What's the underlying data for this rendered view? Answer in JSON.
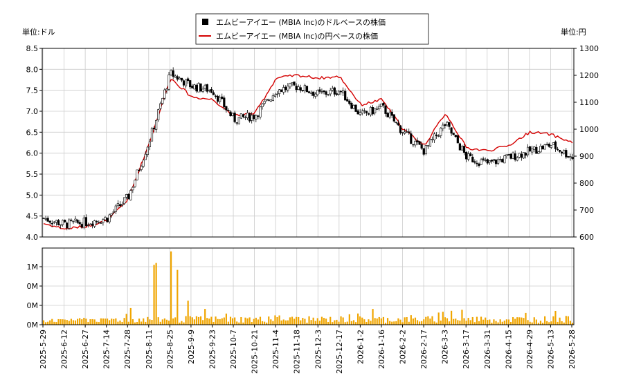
{
  "chart_data": [
    {
      "type": "candlestick",
      "legend": [
        {
          "label": "エムビーアイエー (MBIA Inc)のドルベースの株価",
          "color": "#000000",
          "marker": "square"
        },
        {
          "label": "エムビーアイエー (MBIA Inc)の円ベースの株価",
          "color": "#d40000",
          "marker": "line"
        }
      ],
      "left_unit_label": "単位:ドル",
      "right_unit_label": "単位:円",
      "ylim_left": [
        4.0,
        8.5
      ],
      "ylim_right": [
        600,
        1300
      ],
      "yticks_left": [
        "4.0",
        "4.5",
        "5.0",
        "5.5",
        "6.0",
        "6.5",
        "7.0",
        "7.5",
        "8.0",
        "8.5"
      ],
      "yticks_right": [
        "600",
        "700",
        "800",
        "900",
        "1000",
        "1100",
        "1200",
        "1300"
      ],
      "grid": true,
      "x_dates": [
        "2025-5-29",
        "2025-6-12",
        "2025-6-27",
        "2025-7-14",
        "2025-7-28",
        "2025-8-11",
        "2025-8-25",
        "2025-9-9",
        "2025-9-23",
        "2025-10-7",
        "2025-10-21",
        "2025-11-4",
        "2025-11-18",
        "2025-12-3",
        "2025-12-17",
        "2026-1-2",
        "2026-1-16",
        "2026-2-2",
        "2026-2-17",
        "2026-3-3",
        "2026-3-17",
        "2026-3-31",
        "2026-4-15",
        "2026-4-29",
        "2026-5-13",
        "2026-5-28"
      ],
      "usd_close_by_tick": [
        4.45,
        4.3,
        4.35,
        4.45,
        4.95,
        6.3,
        7.9,
        7.6,
        7.5,
        6.8,
        6.9,
        7.5,
        7.6,
        7.4,
        7.5,
        6.9,
        7.1,
        6.5,
        6.05,
        6.7,
        5.9,
        5.75,
        5.9,
        6.05,
        6.2,
        5.9
      ],
      "jpy_close_by_tick": [
        650,
        630,
        640,
        660,
        740,
        950,
        1190,
        1120,
        1110,
        1050,
        1060,
        1190,
        1200,
        1190,
        1195,
        1090,
        1110,
        1000,
        940,
        1060,
        930,
        920,
        940,
        990,
        980,
        950
      ]
    },
    {
      "type": "bar",
      "yticks": [
        "0M",
        "0M",
        "0M",
        "1M"
      ],
      "x_dates": [
        "2025-5-29",
        "2025-6-12",
        "2025-6-27",
        "2025-7-14",
        "2025-7-28",
        "2025-8-11",
        "2025-8-25",
        "2025-9-9",
        "2025-9-23",
        "2025-10-7",
        "2025-10-21",
        "2025-11-4",
        "2025-11-18",
        "2025-12-3",
        "2025-12-17",
        "2026-1-2",
        "2026-1-16",
        "2026-2-2",
        "2026-2-17",
        "2026-3-3",
        "2026-3-17",
        "2026-3-31",
        "2026-4-15",
        "2026-4-29",
        "2026-5-13",
        "2026-5-28"
      ],
      "volume_peaks_millions": [
        0.12,
        0.1,
        0.15,
        0.12,
        0.3,
        1.45,
        1.95,
        0.35,
        0.45,
        0.2,
        0.15,
        0.25,
        0.2,
        0.18,
        0.25,
        0.3,
        0.5,
        0.25,
        0.25,
        0.35,
        0.4,
        0.12,
        0.15,
        0.35,
        0.4,
        0.2
      ],
      "ylim_millions": [
        0,
        2.0
      ],
      "bar_color": "#f0a500"
    }
  ]
}
